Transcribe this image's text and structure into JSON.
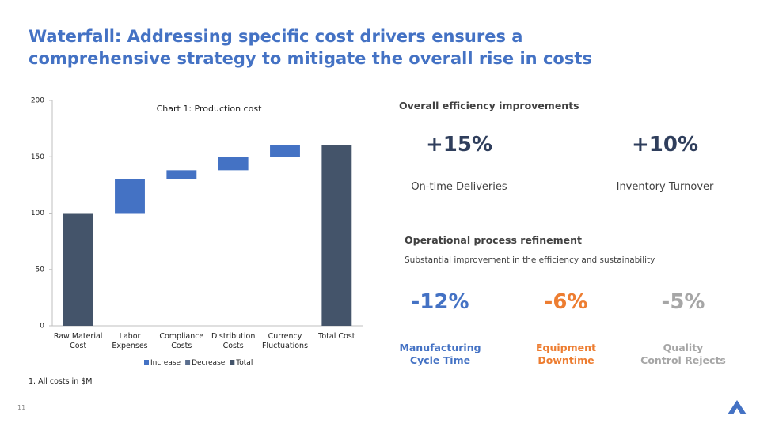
{
  "title": "Waterfall: Addressing specific cost drivers ensures a\ncomprehensive strategy to mitigate the overall rise in costs",
  "chart_data": {
    "type": "waterfall",
    "title": "Chart 1: Production cost",
    "categories": [
      "Raw Material Cost",
      "Labor Expenses",
      "Compliance Costs",
      "Distribution Costs",
      "Currency Fluctuations",
      "Total Cost"
    ],
    "series": [
      {
        "name": "Increase",
        "color": "#4472c4",
        "values": [
          null,
          30,
          8,
          12,
          10,
          null
        ]
      },
      {
        "name": "Decrease",
        "color": "#5b6f8f",
        "values": [
          null,
          null,
          null,
          null,
          null,
          null
        ]
      },
      {
        "name": "Total",
        "color": "#44546a",
        "values": [
          100,
          null,
          null,
          null,
          null,
          160
        ]
      }
    ],
    "ylim": [
      0,
      200
    ],
    "yticks": [
      0,
      50,
      100,
      150,
      200
    ],
    "legend": "bottom"
  },
  "footnote": "1. All costs in $M",
  "page_number": "11",
  "efficiency": {
    "heading": "Overall efficiency improvements",
    "kpis": [
      {
        "value": "+15%",
        "label": "On-time Deliveries"
      },
      {
        "value": "+10%",
        "label": "Inventory Turnover"
      }
    ]
  },
  "process": {
    "heading": "Operational process refinement",
    "subheading": "Substantial improvement in the efficiency and sustainability",
    "kpis": [
      {
        "value": "-12%",
        "label": "Manufacturing\nCycle Time",
        "color": "#4472c4"
      },
      {
        "value": "-6%",
        "label": "Equipment\nDowntime",
        "color": "#ed7d31"
      },
      {
        "value": "-5%",
        "label": "Quality\nControl Rejects",
        "color": "#a6a6a6"
      }
    ]
  }
}
